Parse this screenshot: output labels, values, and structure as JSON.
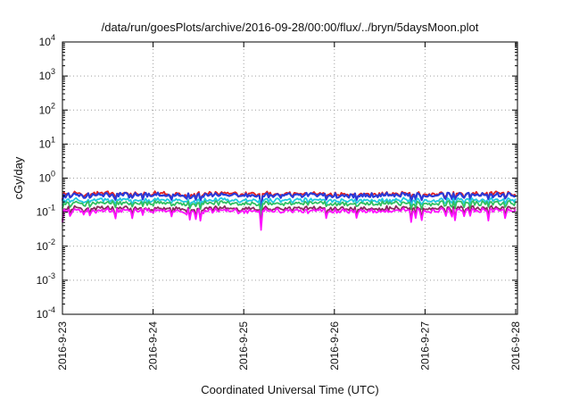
{
  "chart_data": {
    "type": "line",
    "title": "/data/run/goesPlots/archive/2016-09-28/00:00/flux/../bryn/5daysMoon.plot",
    "xlabel": "Coordinated Universal Time (UTC)",
    "ylabel": "cGy/day",
    "xlim": [
      "2016-09-23",
      "2016-09-28"
    ],
    "ylim": [
      0.0001,
      10000
    ],
    "yscale": "log",
    "grid": true,
    "x_ticks": [
      "2016-9-23",
      "2016-9-24",
      "2016-9-25",
      "2016-9-26",
      "2016-9-27",
      "2016-9-28"
    ],
    "y_ticks": [
      {
        "base": "10",
        "exp": "4"
      },
      {
        "base": "10",
        "exp": "3"
      },
      {
        "base": "10",
        "exp": "2"
      },
      {
        "base": "10",
        "exp": "1"
      },
      {
        "base": "10",
        "exp": "0"
      },
      {
        "base": "10",
        "exp": "-1"
      },
      {
        "base": "10",
        "exp": "-2"
      },
      {
        "base": "10",
        "exp": "-3"
      },
      {
        "base": "10",
        "exp": "-4"
      }
    ],
    "series": [
      {
        "color": "#e02020",
        "level": 0.34
      },
      {
        "color": "#2a3ad8",
        "level": 0.31
      },
      {
        "color": "#20c8e0",
        "level": 0.22
      },
      {
        "color": "#30c060",
        "level": 0.18
      },
      {
        "color": "#8a2a60",
        "level": 0.14
      },
      {
        "color": "#ff10ff",
        "level": 0.12
      }
    ],
    "notable_min": {
      "date": "2016-09-25T04:40",
      "value": 0.03
    }
  }
}
